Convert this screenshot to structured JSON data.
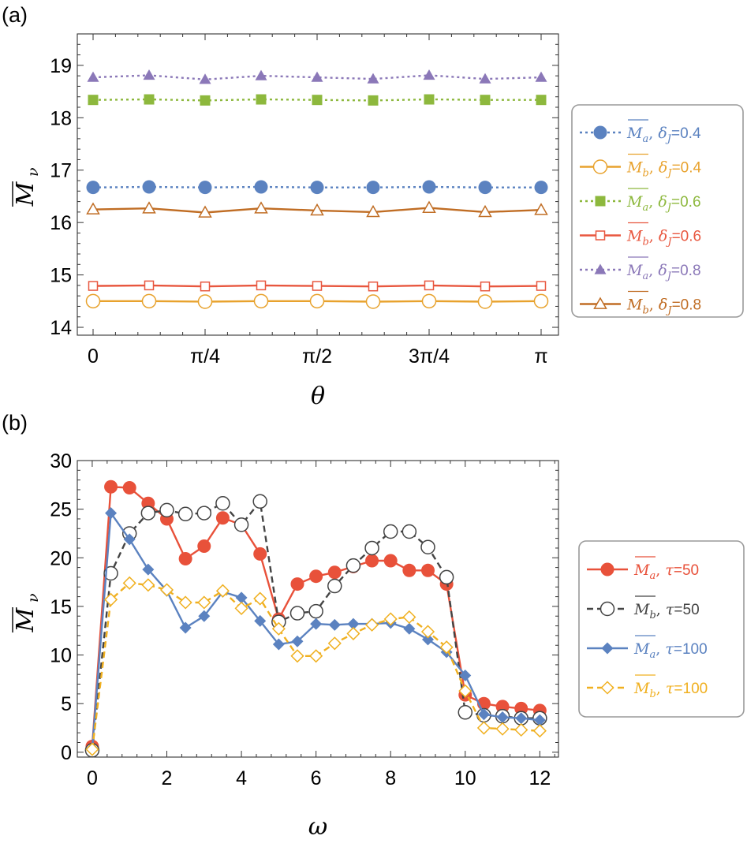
{
  "chart_data": [
    {
      "panel_label": "(a)",
      "type": "line",
      "xlabel": "θ",
      "ylabel": {
        "main": "M",
        "sub": "ν"
      },
      "xlim": [
        0,
        1
      ],
      "ylim": [
        13.85,
        19.6
      ],
      "xticks": [
        {
          "v": 0,
          "label": "0"
        },
        {
          "v": 0.25,
          "label": "π/4"
        },
        {
          "v": 0.5,
          "label": "π/2"
        },
        {
          "v": 0.75,
          "label": "3π/4"
        },
        {
          "v": 1,
          "label": "π"
        }
      ],
      "yticks": [
        {
          "v": 14,
          "label": "14"
        },
        {
          "v": 15,
          "label": "15"
        },
        {
          "v": 16,
          "label": "16"
        },
        {
          "v": 17,
          "label": "17"
        },
        {
          "v": 18,
          "label": "18"
        },
        {
          "v": 19,
          "label": "19"
        }
      ],
      "x": [
        0,
        0.125,
        0.25,
        0.375,
        0.5,
        0.625,
        0.75,
        0.875,
        1
      ],
      "series": [
        {
          "name": "M_a, δ_J=0.4",
          "sym": "M",
          "sub": "a",
          "param": "δ",
          "psub": "J",
          "pval": "=0.4",
          "color": "#5b82c0",
          "dash": "3,4",
          "marker": "circle",
          "filled": true,
          "values": [
            16.67,
            16.68,
            16.67,
            16.68,
            16.67,
            16.67,
            16.68,
            16.67,
            16.67
          ]
        },
        {
          "name": "M_b, δ_J=0.4",
          "sym": "M",
          "sub": "b",
          "param": "δ",
          "psub": "J",
          "pval": "=0.4",
          "color": "#e8a22d",
          "dash": "",
          "marker": "circle",
          "filled": false,
          "values": [
            14.5,
            14.5,
            14.49,
            14.5,
            14.5,
            14.49,
            14.5,
            14.49,
            14.5
          ]
        },
        {
          "name": "M_a, δ_J=0.6",
          "sym": "M",
          "sub": "a",
          "param": "δ",
          "psub": "J",
          "pval": "=0.6",
          "color": "#8db83d",
          "dash": "3,4",
          "marker": "square",
          "filled": true,
          "values": [
            18.34,
            18.35,
            18.33,
            18.35,
            18.34,
            18.33,
            18.35,
            18.34,
            18.34
          ]
        },
        {
          "name": "M_b, δ_J=0.6",
          "sym": "M",
          "sub": "b",
          "param": "δ",
          "psub": "J",
          "pval": "=0.6",
          "color": "#e8573f",
          "dash": "",
          "marker": "square",
          "filled": false,
          "values": [
            14.79,
            14.8,
            14.78,
            14.8,
            14.79,
            14.78,
            14.8,
            14.78,
            14.79
          ]
        },
        {
          "name": "M_a, δ_J=0.8",
          "sym": "M",
          "sub": "a",
          "param": "δ",
          "psub": "J",
          "pval": "=0.8",
          "color": "#8b78b8",
          "dash": "3,4",
          "marker": "triangle",
          "filled": true,
          "values": [
            18.77,
            18.81,
            18.73,
            18.8,
            18.77,
            18.74,
            18.81,
            18.74,
            18.77
          ]
        },
        {
          "name": "M_b, δ_J=0.8",
          "sym": "M",
          "sub": "b",
          "param": "δ",
          "psub": "J",
          "pval": "=0.8",
          "color": "#c06d24",
          "dash": "",
          "marker": "triangle",
          "filled": false,
          "values": [
            16.25,
            16.27,
            16.19,
            16.27,
            16.23,
            16.2,
            16.28,
            16.2,
            16.24
          ]
        }
      ]
    },
    {
      "panel_label": "(b)",
      "type": "line",
      "xlabel": "ω",
      "ylabel": {
        "main": "M",
        "sub": "ν"
      },
      "xlim": [
        -0.4,
        12.5
      ],
      "ylim": [
        -0.5,
        30
      ],
      "xticks": [
        {
          "v": 0,
          "label": "0"
        },
        {
          "v": 2,
          "label": "2"
        },
        {
          "v": 4,
          "label": "4"
        },
        {
          "v": 6,
          "label": "6"
        },
        {
          "v": 8,
          "label": "8"
        },
        {
          "v": 10,
          "label": "10"
        },
        {
          "v": 12,
          "label": "12"
        }
      ],
      "yticks": [
        {
          "v": 0,
          "label": "0"
        },
        {
          "v": 5,
          "label": "5"
        },
        {
          "v": 10,
          "label": "10"
        },
        {
          "v": 15,
          "label": "15"
        },
        {
          "v": 20,
          "label": "20"
        },
        {
          "v": 25,
          "label": "25"
        },
        {
          "v": 30,
          "label": "30"
        }
      ],
      "x": [
        0,
        0.5,
        1,
        1.5,
        2,
        2.5,
        3,
        3.5,
        4,
        4.5,
        5,
        5.5,
        6,
        6.5,
        7,
        7.5,
        8,
        8.5,
        9,
        9.5,
        10,
        10.5,
        11,
        11.5,
        12
      ],
      "series": [
        {
          "name": "M_a, τ=50",
          "sym": "M",
          "sub": "a",
          "param": "τ",
          "psub": "",
          "pval": "=50",
          "color": "#e8513a",
          "dash": "",
          "marker": "circle",
          "filled": true,
          "values": [
            0.6,
            27.3,
            27.2,
            25.6,
            24.0,
            19.9,
            21.2,
            24.1,
            23.4,
            20.4,
            13.7,
            17.3,
            18.1,
            18.5,
            19.1,
            19.7,
            19.7,
            18.7,
            18.7,
            17.3,
            5.9,
            5.0,
            4.7,
            4.5,
            4.3
          ]
        },
        {
          "name": "M_b, τ=50",
          "sym": "M",
          "sub": "b",
          "param": "τ",
          "psub": "",
          "pval": "=50",
          "color": "#444444",
          "dash": "8,5",
          "marker": "circle",
          "filled": false,
          "values": [
            0.2,
            18.4,
            22.5,
            24.6,
            24.9,
            24.5,
            24.6,
            25.6,
            23.4,
            25.8,
            13.4,
            14.3,
            14.5,
            17.1,
            19.2,
            21.0,
            22.7,
            22.7,
            21.1,
            18.0,
            4.1,
            3.8,
            3.7,
            3.5,
            3.5
          ]
        },
        {
          "name": "M_a, τ=100",
          "sym": "M",
          "sub": "a",
          "param": "τ",
          "psub": "",
          "pval": "=100",
          "color": "#5b82c0",
          "dash": "",
          "marker": "diamond",
          "filled": true,
          "values": [
            0.4,
            24.6,
            21.9,
            18.8,
            16.6,
            12.8,
            14.0,
            16.5,
            15.9,
            13.5,
            11.1,
            11.4,
            13.2,
            13.1,
            13.2,
            13.2,
            13.3,
            12.7,
            11.6,
            10.3,
            7.9,
            3.9,
            3.6,
            3.5,
            3.3
          ]
        },
        {
          "name": "M_b, τ=100",
          "sym": "M",
          "sub": "b",
          "param": "τ",
          "psub": "",
          "pval": "=100",
          "color": "#f0b020",
          "dash": "8,5",
          "marker": "diamond",
          "filled": false,
          "values": [
            0.3,
            15.7,
            17.4,
            17.2,
            16.7,
            15.4,
            15.4,
            16.6,
            14.8,
            15.8,
            12.7,
            9.9,
            9.9,
            11.2,
            12.2,
            13.1,
            13.7,
            13.9,
            12.4,
            10.8,
            6.3,
            2.5,
            2.4,
            2.3,
            2.2
          ]
        }
      ]
    }
  ]
}
